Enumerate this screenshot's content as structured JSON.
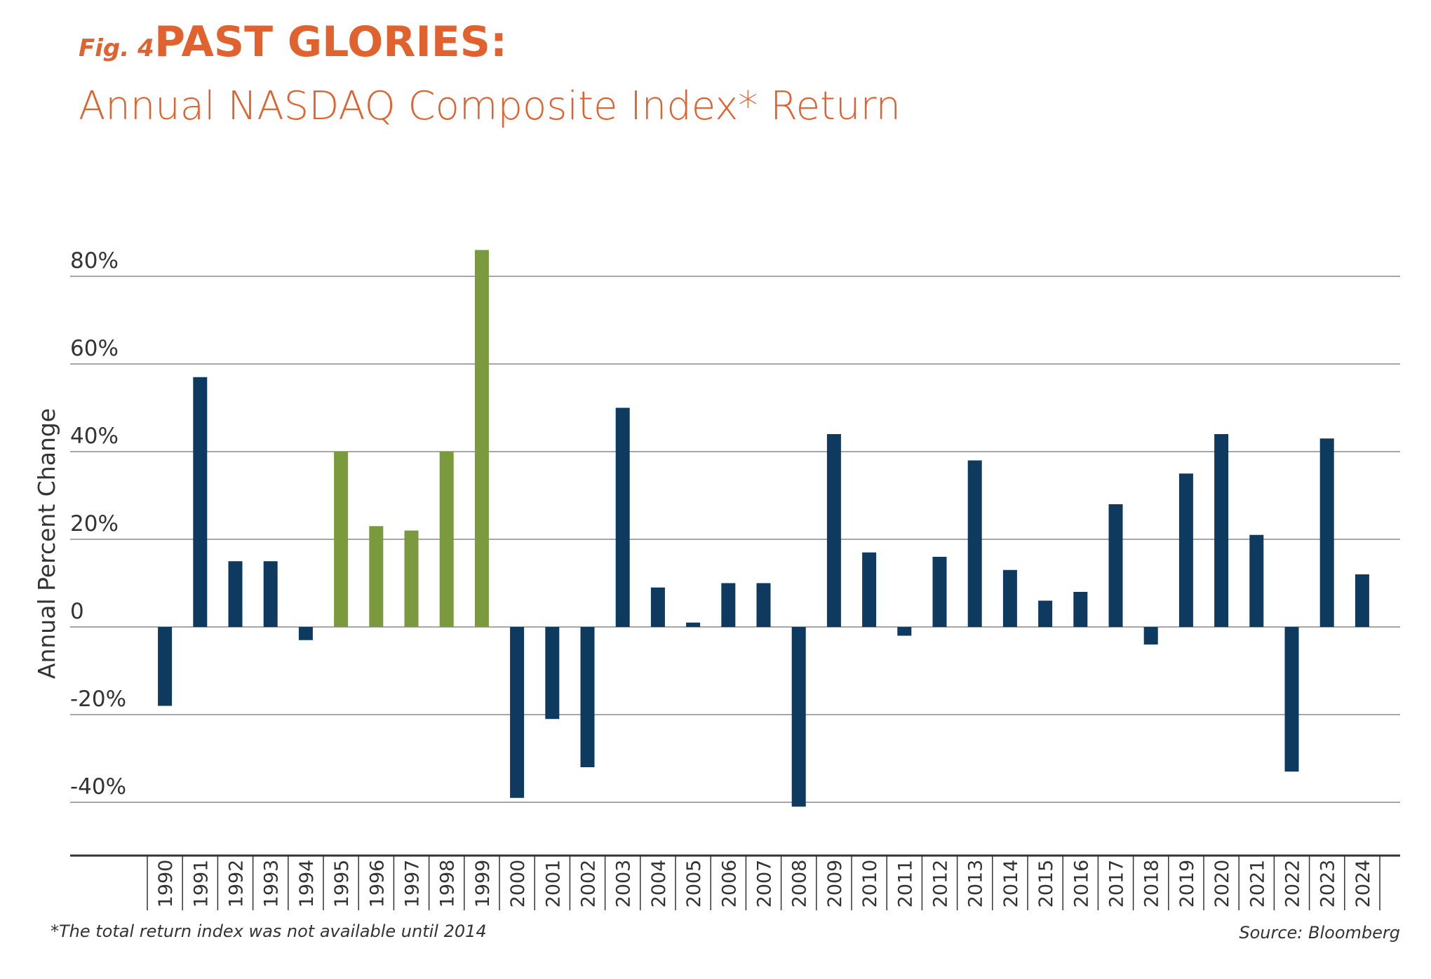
{
  "header": {
    "fig_label": "Fig. 4",
    "title": "PAST GLORIES:",
    "subtitle": "Annual NASDAQ Composite Index* Return"
  },
  "footer": {
    "note": "*The total return index was not available until 2014",
    "source": "Source: Bloomberg"
  },
  "colors": {
    "accent": "#e0622f",
    "bar_default": "#0f3a5f",
    "bar_highlight": "#7a9a3d",
    "grid": "#8a8a8a",
    "axis": "#333333",
    "text": "#333333"
  },
  "chart_data": {
    "type": "bar",
    "ylabel": "Annual Percent Change",
    "xlabel": "",
    "ylim": [
      -50,
      90
    ],
    "yticks": [
      80,
      60,
      40,
      20,
      0,
      -20,
      -40
    ],
    "ytick_labels": [
      "80%",
      "60%",
      "40%",
      "20%",
      "0",
      "-20%",
      "-40%"
    ],
    "grid": true,
    "categories": [
      "1990",
      "1991",
      "1992",
      "1993",
      "1994",
      "1995",
      "1996",
      "1997",
      "1998",
      "1999",
      "2000",
      "2001",
      "2002",
      "2003",
      "2004",
      "2005",
      "2006",
      "2007",
      "2008",
      "2009",
      "2010",
      "2011",
      "2012",
      "2013",
      "2014",
      "2015",
      "2016",
      "2017",
      "2018",
      "2019",
      "2020",
      "2021",
      "2022",
      "2023",
      "2024"
    ],
    "values": [
      -18,
      57,
      15,
      15,
      -3,
      40,
      23,
      22,
      40,
      86,
      -39,
      -21,
      -32,
      50,
      9,
      1,
      10,
      10,
      -41,
      44,
      17,
      -2,
      16,
      38,
      13,
      6,
      8,
      28,
      -4,
      35,
      44,
      21,
      -33,
      43,
      12
    ],
    "highlighted_categories": [
      "1995",
      "1996",
      "1997",
      "1998",
      "1999"
    ]
  }
}
